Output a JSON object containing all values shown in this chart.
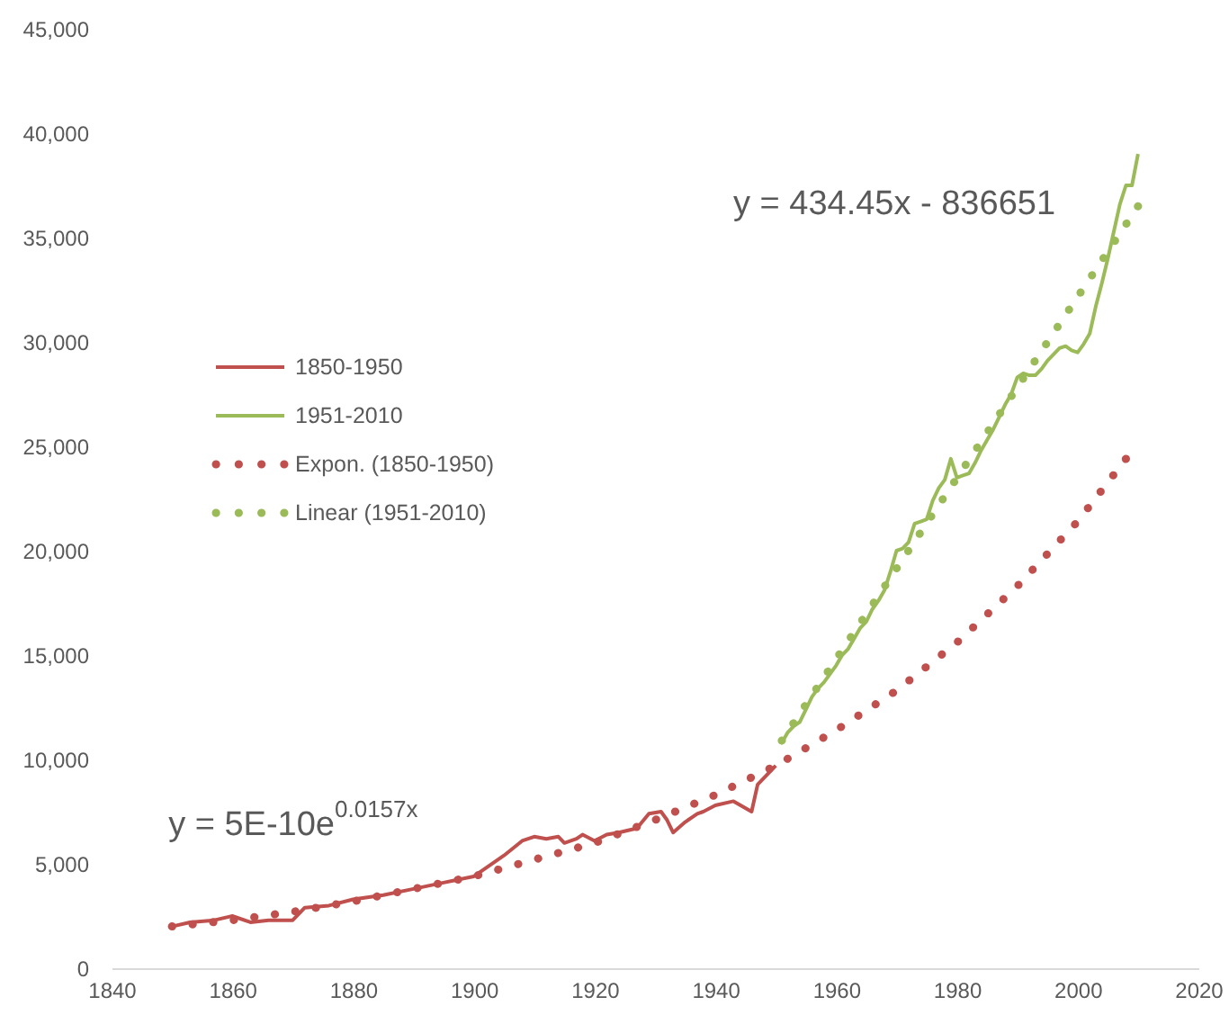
{
  "chart_data": {
    "type": "line",
    "xlim": [
      1840,
      2020
    ],
    "xticks": [
      1840,
      1860,
      1880,
      1900,
      1920,
      1940,
      1960,
      1980,
      2000,
      2020
    ],
    "ylim": [
      0,
      45000
    ],
    "yticks": [
      0,
      {
        "value": 5000,
        "label": "5,000"
      },
      {
        "value": 10000,
        "label": "10,000"
      },
      {
        "value": 15000,
        "label": "15,000"
      },
      {
        "value": 20000,
        "label": "20,000"
      },
      {
        "value": 25000,
        "label": "25,000"
      },
      {
        "value": 30000,
        "label": "30,000"
      },
      {
        "value": 35000,
        "label": "35,000"
      },
      {
        "value": 40000,
        "label": "40,000"
      },
      {
        "value": 45000,
        "label": "45,000"
      }
    ],
    "grid": false,
    "legend": "left",
    "line_style": "solid",
    "series": [
      {
        "name": "1850-1950",
        "color": "#c0504d",
        "x": [
          1850,
          1853,
          1857,
          1860,
          1863,
          1866,
          1870,
          1872,
          1876,
          1880,
          1885,
          1890,
          1895,
          1900,
          1902,
          1905,
          1908,
          1910,
          1912,
          1914,
          1915,
          1917,
          1918,
          1920,
          1922,
          1924,
          1927,
          1929,
          1931,
          1932,
          1933,
          1935,
          1937,
          1938,
          1940,
          1943,
          1946,
          1947,
          1948,
          1950
        ],
        "values": [
          2000,
          2200,
          2300,
          2500,
          2200,
          2300,
          2300,
          2900,
          3000,
          3300,
          3500,
          3800,
          4100,
          4400,
          4800,
          5400,
          6100,
          6300,
          6200,
          6300,
          6000,
          6200,
          6400,
          6100,
          6400,
          6500,
          6700,
          7400,
          7500,
          7100,
          6500,
          7000,
          7400,
          7500,
          7800,
          8000,
          7500,
          8800,
          9100,
          9700
        ]
      },
      {
        "name": "1951-2010",
        "color": "#9bbb59",
        "x": [
          1951,
          1952,
          1953,
          1954,
          1955,
          1956,
          1957,
          1958,
          1959,
          1960,
          1961,
          1962,
          1963,
          1964,
          1965,
          1966,
          1967,
          1968,
          1969,
          1970,
          1971,
          1972,
          1973,
          1974,
          1975,
          1976,
          1977,
          1978,
          1979,
          1980,
          1981,
          1982,
          1983,
          1984,
          1985,
          1986,
          1987,
          1988,
          1989,
          1990,
          1991,
          1992,
          1993,
          1994,
          1995,
          1996,
          1997,
          1998,
          1999,
          2000,
          2001,
          2002,
          2003,
          2004,
          2005,
          2006,
          2007,
          2008,
          2009,
          2010
        ],
        "values": [
          10800,
          11300,
          11600,
          11800,
          12400,
          13000,
          13400,
          13700,
          14100,
          14500,
          15000,
          15300,
          15800,
          16300,
          16600,
          17200,
          17600,
          18100,
          19000,
          20000,
          20100,
          20400,
          21300,
          21400,
          21500,
          22400,
          23000,
          23400,
          24400,
          23500,
          23600,
          23700,
          24200,
          24800,
          25300,
          25800,
          26400,
          27000,
          27500,
          28300,
          28500,
          28400,
          28400,
          28700,
          29100,
          29400,
          29700,
          29800,
          29600,
          29500,
          29900,
          30400,
          31700,
          32800,
          34000,
          35300,
          36600,
          37500,
          37500,
          39000
        ]
      },
      {
        "name": "Expon. (1850-1950)",
        "color": "#c0504d",
        "line_style": "dotted",
        "x": [
          1850,
          1860,
          1870,
          1880,
          1890,
          1900,
          1910,
          1920,
          1930,
          1940,
          1950,
          1960,
          1970,
          1980,
          1990,
          2000,
          2008
        ],
        "values": [
          2000,
          2300,
          2700,
          3200,
          3800,
          4400,
          5200,
          6000,
          7100,
          8300,
          9700,
          11400,
          13300,
          15600,
          18300,
          21400,
          24400
        ]
      },
      {
        "name": "Linear (1951-2010)",
        "color": "#9bbb59",
        "line_style": "dotted",
        "x": [
          1951,
          2010
        ],
        "values": [
          10900,
          36500
        ]
      }
    ],
    "annotations": [
      "y = 434.45x - 836651",
      "y = 5E-10e$^{0.0157x}$"
    ]
  }
}
